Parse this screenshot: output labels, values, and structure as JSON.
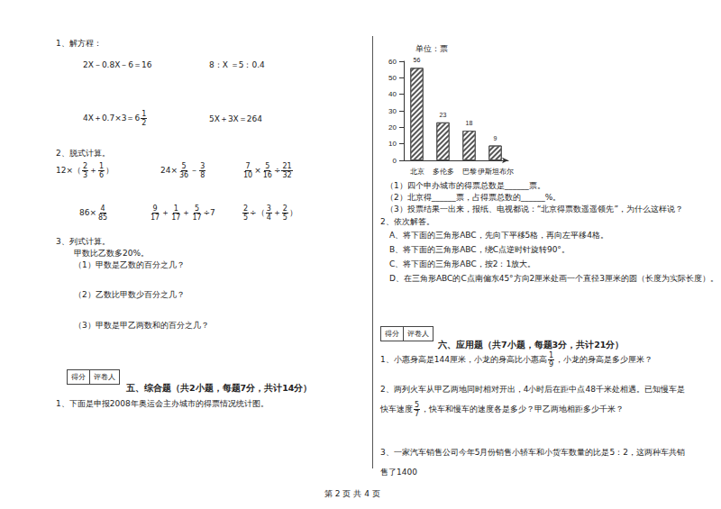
{
  "page": {
    "left": {
      "q1": {
        "title": "1、解方程：",
        "items": [
          [
            "2X－0.8X－6＝16"
          ],
          [
            "8：X ＝5：0.4"
          ],
          [
            "4X＋0.7×3＝6",
            {
              "num": "1",
              "den": "2"
            }
          ],
          [
            "5X＋3X＝264"
          ]
        ]
      },
      "q2": {
        "title": "2、脱式计算。",
        "items": [
          [
            "12×（",
            {
              "num": "2",
              "den": "3"
            },
            "＋",
            {
              "num": "1",
              "den": "6"
            },
            "）"
          ],
          [
            "24×",
            {
              "num": "5",
              "den": "36"
            },
            "－",
            {
              "num": "3",
              "den": "8"
            }
          ],
          [
            {
              "num": "7",
              "den": "10"
            },
            "×",
            {
              "num": "5",
              "den": "16"
            },
            "÷",
            {
              "num": "21",
              "den": "32"
            }
          ],
          [
            "86×",
            {
              "num": "4",
              "den": "85"
            }
          ],
          [
            {
              "num": "9",
              "den": "17"
            },
            "＋",
            {
              "num": "1",
              "den": "17"
            },
            "＋",
            {
              "num": "5",
              "den": "17"
            },
            "÷7"
          ],
          [
            {
              "num": "2",
              "den": "5"
            },
            "÷（",
            {
              "num": "3",
              "den": "4"
            },
            "＋",
            {
              "num": "2",
              "den": "5"
            },
            "）"
          ]
        ]
      },
      "q3": {
        "title": "3、列式计算。",
        "lead": "甲数比乙数多20%。",
        "items": [
          "（1）甲数是乙数的百分之几？",
          "（2）乙数比甲数少百分之几？",
          "（3）甲数是甲乙两数和的百分之几？"
        ]
      },
      "score": [
        "得分",
        "评卷人"
      ],
      "section5": {
        "heading": "五、综合题（共2小题，每题7分，共计14分）",
        "q1": "1、下面是申报2008年奥运会主办城市的得票情况统计图。"
      }
    },
    "right": {
      "chart_questions": [
        "（1）四个申办城市的得票总数是______票。",
        "（2）北京得______票，占得票总数的______%。",
        "（3）投票结果一出来，报纸、电视都说：“北京得票数遥遥领先”，为什么这样说？"
      ],
      "q2": {
        "title": "2、依次解答。",
        "items": [
          "A、将下面的三角形ABC，先向下平移5格，再向左平移4格。",
          "B、将下面的三角形ABC，绕C点逆时针旋转90°。",
          "C、将下面的三角形ABC，按2：1放大。",
          "D、在三角形ABC的C点南偏东45°方向2厘米处画一个直径3厘米的圆（长度为实际长度）。"
        ]
      },
      "score": [
        "得分",
        "评卷人"
      ],
      "section6": {
        "heading": "六、应用题（共7小题，每题3分，共计21分）",
        "questions": [
          [
            "1、小惠身高是144厘米，小龙的身高比小惠高",
            {
              "num": "1",
              "den": "9"
            },
            "，小龙的身高是多少厘米？"
          ],
          [
            "2、两列火车从甲乙两地同时相对开出，4小时后在距中点48千米处相遇。已知慢车是快车速度",
            {
              "num": "5",
              "den": "7"
            },
            "，快车和慢车的速度各是多少？甲乙两地相距多少千米？"
          ],
          [
            "3、一家汽车销售公司今年5月份销售小轿车和小货车数量的比是5：2，这两种车共销售了1400"
          ]
        ]
      }
    },
    "footer": "第 2 页 共 4 页"
  },
  "chart_data": {
    "type": "bar",
    "title": "单位：票",
    "categories": [
      "北京",
      "多伦多",
      "巴黎",
      "伊斯坦布尔"
    ],
    "values": [
      56,
      23,
      18,
      9
    ],
    "color": "#555555",
    "ylim": [
      0,
      60
    ],
    "yticks": [
      0,
      10,
      20,
      30,
      40,
      50,
      60
    ],
    "grid": false,
    "data_labels": true
  }
}
